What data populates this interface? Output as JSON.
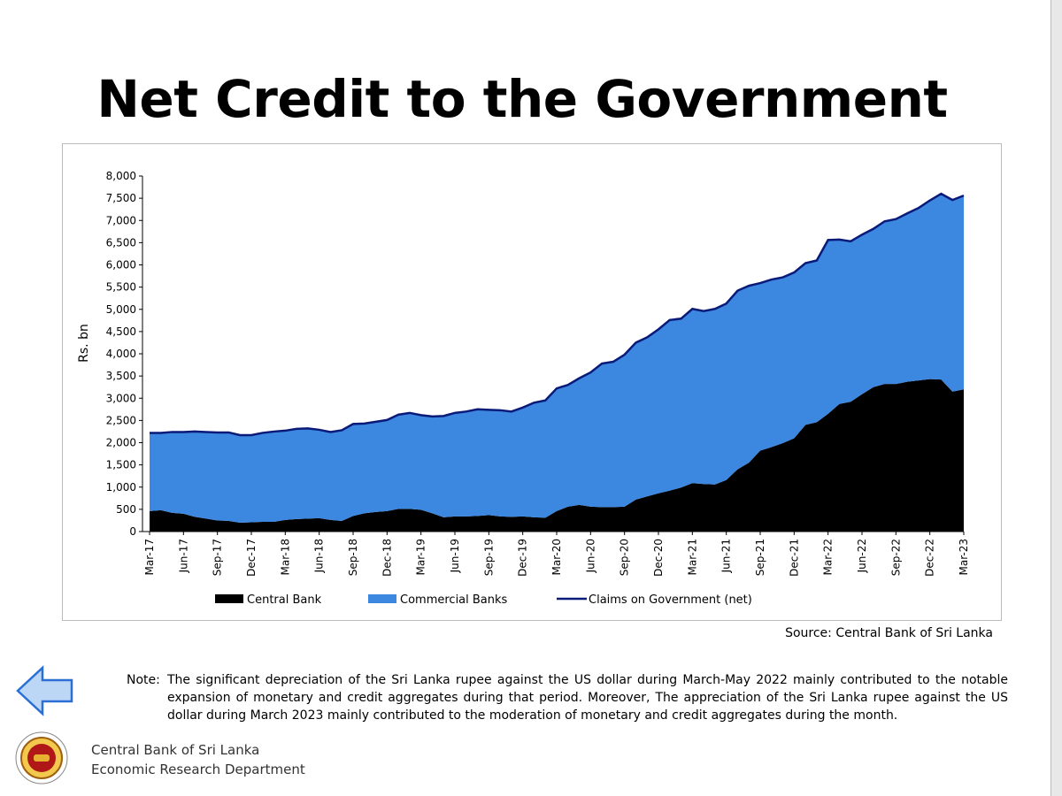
{
  "title": "Net Credit to the Government",
  "chart_data": {
    "type": "stacked_area",
    "y_label": "Rs. bn",
    "categories": [
      "Mar-17",
      null,
      null,
      "Jun-17",
      null,
      null,
      "Sep-17",
      null,
      null,
      "Dec-17",
      null,
      null,
      "Mar-18",
      null,
      null,
      "Jun-18",
      null,
      null,
      "Sep-18",
      null,
      null,
      "Dec-18",
      null,
      null,
      "Mar-19",
      null,
      null,
      "Jun-19",
      null,
      null,
      "Sep-19",
      null,
      null,
      "Dec-19",
      null,
      null,
      "Mar-20",
      null,
      null,
      "Jun-20",
      null,
      null,
      "Sep-20",
      null,
      null,
      "Dec-20",
      null,
      null,
      "Mar-21",
      null,
      null,
      "Jun-21",
      null,
      null,
      "Sep-21",
      null,
      null,
      "Dec-21",
      null,
      null,
      "Mar-22",
      null,
      null,
      "Jun-22",
      null,
      null,
      "Sep-22",
      null,
      null,
      "Dec-22",
      null,
      null,
      "Mar-23"
    ],
    "series": [
      {
        "name": "Central Bank",
        "color": "#000000",
        "kind": "area",
        "values": [
          460,
          480,
          420,
          400,
          330,
          290,
          250,
          240,
          200,
          210,
          220,
          220,
          260,
          280,
          290,
          300,
          260,
          240,
          350,
          410,
          440,
          460,
          510,
          510,
          490,
          410,
          320,
          340,
          340,
          350,
          370,
          340,
          330,
          340,
          320,
          310,
          460,
          560,
          600,
          560,
          550,
          550,
          560,
          720,
          790,
          860,
          920,
          990,
          1090,
          1070,
          1060,
          1160,
          1400,
          1550,
          1820,
          1900,
          1990,
          2100,
          2400,
          2460,
          2650,
          2870,
          2920,
          3090,
          3250,
          3320,
          3320,
          3370,
          3400,
          3430,
          3420,
          3150,
          3200
        ]
      },
      {
        "name": "Commercial Banks",
        "color": "#3c87e0",
        "kind": "area",
        "values": [
          1760,
          1740,
          1820,
          1840,
          1920,
          1950,
          1980,
          1990,
          1970,
          1960,
          2000,
          2030,
          2010,
          2030,
          2030,
          1990,
          1980,
          2040,
          2070,
          2020,
          2030,
          2050,
          2120,
          2160,
          2130,
          2180,
          2280,
          2330,
          2360,
          2400,
          2370,
          2390,
          2370,
          2450,
          2580,
          2640,
          2760,
          2740,
          2850,
          3020,
          3230,
          3270,
          3420,
          3530,
          3580,
          3690,
          3840,
          3800,
          3920,
          3890,
          3950,
          3970,
          4020,
          3980,
          3770,
          3770,
          3730,
          3730,
          3640,
          3640,
          3910,
          3700,
          3610,
          3590,
          3560,
          3660,
          3710,
          3790,
          3880,
          4020,
          4180,
          4310,
          4360
        ]
      },
      {
        "name": "Claims on Government (net)",
        "color": "#0a1a78",
        "kind": "line",
        "values": [
          2220,
          2220,
          2240,
          2240,
          2250,
          2240,
          2230,
          2230,
          2170,
          2170,
          2220,
          2250,
          2270,
          2310,
          2320,
          2290,
          2240,
          2280,
          2420,
          2430,
          2470,
          2510,
          2630,
          2670,
          2620,
          2590,
          2600,
          2670,
          2700,
          2750,
          2740,
          2730,
          2700,
          2790,
          2900,
          2950,
          3220,
          3300,
          3450,
          3580,
          3780,
          3820,
          3980,
          4250,
          4370,
          4550,
          4760,
          4790,
          5010,
          4960,
          5010,
          5130,
          5420,
          5530,
          5590,
          5670,
          5720,
          5830,
          6040,
          6100,
          6560,
          6570,
          6530,
          6680,
          6810,
          6980,
          7030,
          7160,
          7280,
          7450,
          7600,
          7460,
          7560
        ]
      }
    ],
    "ylim": [
      0,
      8000
    ],
    "yticks": [
      0,
      500,
      {
        "value": 1000,
        "label": "1,000"
      },
      {
        "value": 1500,
        "label": "1,500"
      },
      {
        "value": 2000,
        "label": "2,000"
      },
      {
        "value": 2500,
        "label": "2,500"
      },
      {
        "value": 3000,
        "label": "3,000"
      },
      {
        "value": 3500,
        "label": "3,500"
      },
      {
        "value": 4000,
        "label": "4,000"
      },
      {
        "value": 4500,
        "label": "4,500"
      },
      {
        "value": 5000,
        "label": "5,000"
      },
      {
        "value": 5500,
        "label": "5,500"
      },
      {
        "value": 6000,
        "label": "6,000"
      },
      {
        "value": 6500,
        "label": "6,500"
      },
      {
        "value": 7000,
        "label": "7,000"
      },
      {
        "value": 7500,
        "label": "7,500"
      },
      {
        "value": 8000,
        "label": "8,000"
      }
    ],
    "grid": false,
    "legend": "bottom"
  },
  "source": "Source: Central Bank of Sri Lanka",
  "note": {
    "label": "Note:",
    "text": "The significant depreciation of the Sri Lanka rupee against the US dollar during March-May 2022 mainly contributed to the notable expansion of monetary and credit aggregates during that period. Moreover, The appreciation of the Sri Lanka rupee against the US dollar during March 2023 mainly contributed to the moderation of monetary and credit aggregates during the month."
  },
  "footer": {
    "line1": "Central Bank of Sri Lanka",
    "line2": "Economic Research Department"
  }
}
